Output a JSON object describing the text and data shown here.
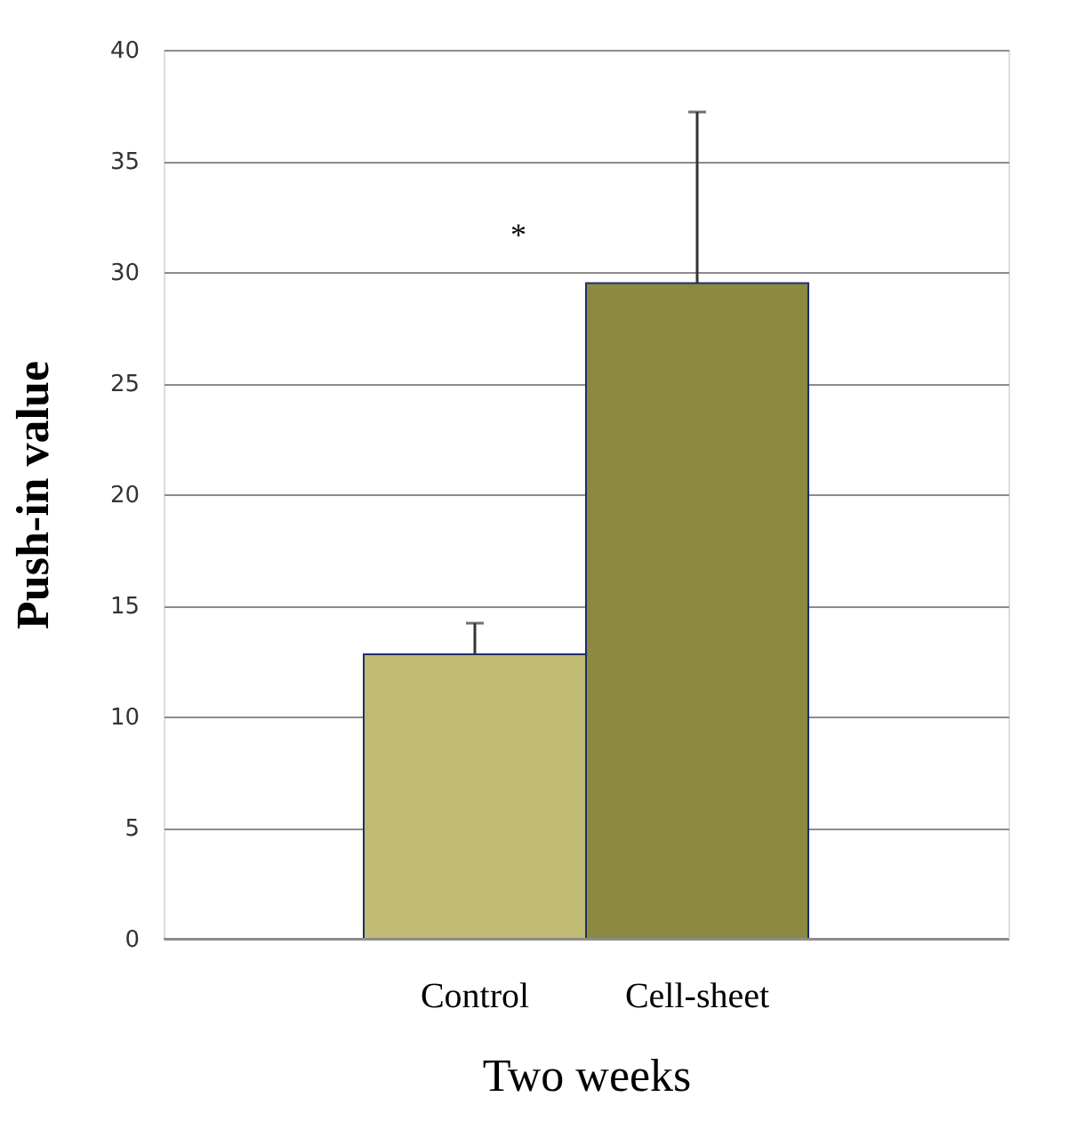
{
  "chart_data": {
    "type": "bar",
    "xlabel": "Two weeks",
    "ylabel": "Push-in value",
    "categories": [
      "Control",
      "Cell-sheet"
    ],
    "values": [
      12.8,
      29.5
    ],
    "colors": [
      "#c0ba72",
      "#8b8a40"
    ],
    "errors": [
      [
        12.8,
        14.2
      ],
      [
        29.5,
        37.2
      ]
    ],
    "ylim": [
      0,
      40
    ],
    "yticks": [
      0,
      5,
      10,
      15,
      20,
      25,
      30,
      35,
      40
    ],
    "grid": "y",
    "annotations": [
      "*"
    ]
  }
}
